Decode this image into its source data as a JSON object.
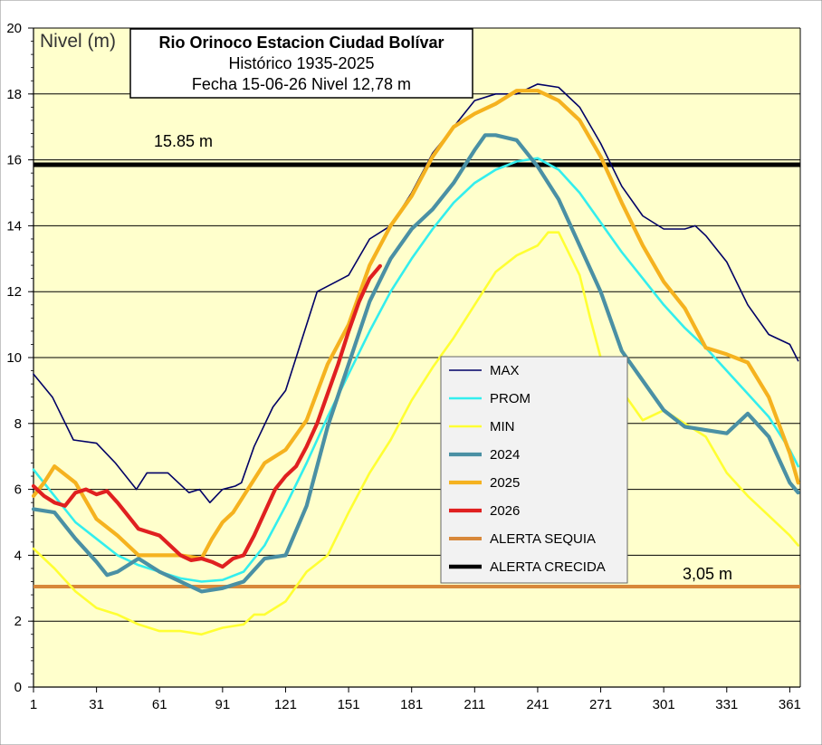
{
  "chart_data": {
    "type": "line",
    "title_lines": [
      "Rio Orinoco Estacion Ciudad Bolívar",
      "Histórico 1935-2025",
      "Fecha 15-06-26 Nivel 12,78 m"
    ],
    "ylabel": "Nivel (m)",
    "xlim": [
      1,
      366
    ],
    "ylim": [
      0,
      20
    ],
    "yticks": [
      0,
      2,
      4,
      6,
      8,
      10,
      12,
      14,
      16,
      18,
      20
    ],
    "xticks": [
      1,
      31,
      61,
      91,
      121,
      151,
      181,
      211,
      241,
      271,
      301,
      331,
      361
    ],
    "grid": "horizontal",
    "legend_position": "center-right",
    "annotations": {
      "crecida_label": "15.85 m",
      "sequia_label": "3,05 m"
    },
    "series": [
      {
        "name": "MAX",
        "color": "#000066",
        "width": 1.6,
        "points": [
          [
            1,
            9.5
          ],
          [
            10,
            8.8
          ],
          [
            20,
            7.5
          ],
          [
            31,
            7.4
          ],
          [
            40,
            6.8
          ],
          [
            50,
            6.0
          ],
          [
            55,
            6.5
          ],
          [
            65,
            6.5
          ],
          [
            75,
            5.9
          ],
          [
            80,
            6.0
          ],
          [
            85,
            5.6
          ],
          [
            91,
            6.0
          ],
          [
            97,
            6.1
          ],
          [
            100,
            6.2
          ],
          [
            106,
            7.3
          ],
          [
            115,
            8.5
          ],
          [
            121,
            9.0
          ],
          [
            131,
            11.0
          ],
          [
            136,
            12.0
          ],
          [
            145,
            12.3
          ],
          [
            151,
            12.5
          ],
          [
            161,
            13.6
          ],
          [
            171,
            14.0
          ],
          [
            181,
            15.0
          ],
          [
            191,
            16.2
          ],
          [
            201,
            17.0
          ],
          [
            211,
            17.8
          ],
          [
            221,
            18.0
          ],
          [
            231,
            18.0
          ],
          [
            241,
            18.3
          ],
          [
            251,
            18.2
          ],
          [
            261,
            17.6
          ],
          [
            271,
            16.5
          ],
          [
            281,
            15.2
          ],
          [
            291,
            14.3
          ],
          [
            301,
            13.9
          ],
          [
            311,
            13.9
          ],
          [
            316,
            14.0
          ],
          [
            321,
            13.7
          ],
          [
            331,
            12.9
          ],
          [
            341,
            11.6
          ],
          [
            351,
            10.7
          ],
          [
            361,
            10.4
          ],
          [
            365,
            9.9
          ]
        ]
      },
      {
        "name": "PROM",
        "color": "#33EEEE",
        "width": 2.6,
        "points": [
          [
            1,
            6.6
          ],
          [
            11,
            5.8
          ],
          [
            21,
            5.0
          ],
          [
            31,
            4.5
          ],
          [
            41,
            4.0
          ],
          [
            51,
            3.7
          ],
          [
            61,
            3.5
          ],
          [
            71,
            3.3
          ],
          [
            81,
            3.2
          ],
          [
            91,
            3.25
          ],
          [
            101,
            3.5
          ],
          [
            111,
            4.3
          ],
          [
            121,
            5.5
          ],
          [
            131,
            6.8
          ],
          [
            141,
            8.2
          ],
          [
            151,
            9.5
          ],
          [
            161,
            10.8
          ],
          [
            171,
            12.0
          ],
          [
            181,
            13.0
          ],
          [
            191,
            13.9
          ],
          [
            201,
            14.7
          ],
          [
            211,
            15.3
          ],
          [
            221,
            15.7
          ],
          [
            231,
            15.95
          ],
          [
            241,
            16.05
          ],
          [
            251,
            15.7
          ],
          [
            261,
            15.0
          ],
          [
            271,
            14.1
          ],
          [
            281,
            13.2
          ],
          [
            291,
            12.4
          ],
          [
            301,
            11.6
          ],
          [
            311,
            10.9
          ],
          [
            321,
            10.3
          ],
          [
            331,
            9.6
          ],
          [
            341,
            8.9
          ],
          [
            351,
            8.2
          ],
          [
            361,
            7.2
          ],
          [
            365,
            6.7
          ]
        ]
      },
      {
        "name": "MIN",
        "color": "#FFFF33",
        "width": 2.6,
        "points": [
          [
            1,
            4.2
          ],
          [
            11,
            3.6
          ],
          [
            21,
            2.9
          ],
          [
            31,
            2.4
          ],
          [
            41,
            2.2
          ],
          [
            51,
            1.9
          ],
          [
            61,
            1.7
          ],
          [
            71,
            1.7
          ],
          [
            81,
            1.6
          ],
          [
            91,
            1.8
          ],
          [
            101,
            1.9
          ],
          [
            106,
            2.2
          ],
          [
            111,
            2.2
          ],
          [
            116,
            2.4
          ],
          [
            121,
            2.6
          ],
          [
            131,
            3.5
          ],
          [
            141,
            4.0
          ],
          [
            151,
            5.3
          ],
          [
            161,
            6.5
          ],
          [
            171,
            7.5
          ],
          [
            181,
            8.7
          ],
          [
            191,
            9.7
          ],
          [
            201,
            10.6
          ],
          [
            211,
            11.6
          ],
          [
            221,
            12.6
          ],
          [
            231,
            13.1
          ],
          [
            241,
            13.4
          ],
          [
            246,
            13.8
          ],
          [
            251,
            13.8
          ],
          [
            261,
            12.5
          ],
          [
            266,
            11.2
          ],
          [
            271,
            10.0
          ],
          [
            281,
            9.0
          ],
          [
            291,
            8.1
          ],
          [
            301,
            8.4
          ],
          [
            311,
            8.0
          ],
          [
            321,
            7.6
          ],
          [
            331,
            6.5
          ],
          [
            341,
            5.8
          ],
          [
            351,
            5.2
          ],
          [
            361,
            4.6
          ],
          [
            365,
            4.3
          ]
        ]
      },
      {
        "name": "2024",
        "color": "#4A90A4",
        "width": 4.2,
        "points": [
          [
            1,
            5.4
          ],
          [
            11,
            5.3
          ],
          [
            21,
            4.5
          ],
          [
            31,
            3.8
          ],
          [
            36,
            3.4
          ],
          [
            41,
            3.5
          ],
          [
            51,
            3.9
          ],
          [
            61,
            3.5
          ],
          [
            71,
            3.2
          ],
          [
            81,
            2.9
          ],
          [
            91,
            3.0
          ],
          [
            101,
            3.2
          ],
          [
            111,
            3.9
          ],
          [
            121,
            4.0
          ],
          [
            131,
            5.5
          ],
          [
            141,
            7.9
          ],
          [
            151,
            9.8
          ],
          [
            161,
            11.7
          ],
          [
            171,
            13.0
          ],
          [
            181,
            13.9
          ],
          [
            191,
            14.5
          ],
          [
            201,
            15.3
          ],
          [
            211,
            16.3
          ],
          [
            216,
            16.75
          ],
          [
            221,
            16.75
          ],
          [
            231,
            16.6
          ],
          [
            241,
            15.8
          ],
          [
            251,
            14.8
          ],
          [
            261,
            13.4
          ],
          [
            271,
            12.0
          ],
          [
            281,
            10.2
          ],
          [
            291,
            9.3
          ],
          [
            301,
            8.4
          ],
          [
            311,
            7.9
          ],
          [
            321,
            7.8
          ],
          [
            331,
            7.7
          ],
          [
            341,
            8.3
          ],
          [
            351,
            7.6
          ],
          [
            361,
            6.2
          ],
          [
            365,
            5.9
          ]
        ]
      },
      {
        "name": "2025",
        "color": "#F5B21F",
        "width": 4.2,
        "points": [
          [
            1,
            5.8
          ],
          [
            6,
            6.2
          ],
          [
            11,
            6.7
          ],
          [
            21,
            6.2
          ],
          [
            31,
            5.1
          ],
          [
            41,
            4.6
          ],
          [
            51,
            4.0
          ],
          [
            61,
            4.0
          ],
          [
            71,
            4.0
          ],
          [
            81,
            3.9
          ],
          [
            86,
            4.5
          ],
          [
            91,
            5.0
          ],
          [
            96,
            5.3
          ],
          [
            101,
            5.8
          ],
          [
            111,
            6.8
          ],
          [
            121,
            7.2
          ],
          [
            131,
            8.1
          ],
          [
            141,
            9.8
          ],
          [
            151,
            11.0
          ],
          [
            161,
            12.8
          ],
          [
            171,
            14.0
          ],
          [
            181,
            14.9
          ],
          [
            191,
            16.1
          ],
          [
            201,
            17.0
          ],
          [
            211,
            17.4
          ],
          [
            221,
            17.7
          ],
          [
            231,
            18.1
          ],
          [
            241,
            18.1
          ],
          [
            251,
            17.8
          ],
          [
            261,
            17.2
          ],
          [
            271,
            16.1
          ],
          [
            281,
            14.7
          ],
          [
            291,
            13.4
          ],
          [
            301,
            12.3
          ],
          [
            311,
            11.5
          ],
          [
            321,
            10.3
          ],
          [
            331,
            10.1
          ],
          [
            341,
            9.85
          ],
          [
            351,
            8.8
          ],
          [
            361,
            7.1
          ],
          [
            365,
            6.2
          ]
        ]
      },
      {
        "name": "2026",
        "color": "#E02020",
        "width": 4.2,
        "points": [
          [
            1,
            6.1
          ],
          [
            6,
            5.8
          ],
          [
            11,
            5.6
          ],
          [
            16,
            5.5
          ],
          [
            21,
            5.9
          ],
          [
            26,
            6.0
          ],
          [
            31,
            5.85
          ],
          [
            36,
            5.95
          ],
          [
            41,
            5.6
          ],
          [
            46,
            5.2
          ],
          [
            51,
            4.8
          ],
          [
            61,
            4.6
          ],
          [
            66,
            4.3
          ],
          [
            71,
            4.0
          ],
          [
            76,
            3.85
          ],
          [
            81,
            3.9
          ],
          [
            86,
            3.8
          ],
          [
            91,
            3.65
          ],
          [
            96,
            3.9
          ],
          [
            101,
            4.0
          ],
          [
            106,
            4.6
          ],
          [
            111,
            5.3
          ],
          [
            116,
            6.0
          ],
          [
            121,
            6.4
          ],
          [
            126,
            6.7
          ],
          [
            131,
            7.3
          ],
          [
            136,
            8.0
          ],
          [
            141,
            8.9
          ],
          [
            146,
            9.8
          ],
          [
            151,
            10.8
          ],
          [
            156,
            11.7
          ],
          [
            161,
            12.4
          ],
          [
            166,
            12.78
          ]
        ]
      }
    ],
    "thresholds": [
      {
        "name": "ALERTA SEQUIA",
        "value": 3.05,
        "color": "#D8883A",
        "width": 4
      },
      {
        "name": "ALERTA CRECIDA",
        "value": 15.85,
        "color": "#000000",
        "width": 5
      }
    ]
  }
}
